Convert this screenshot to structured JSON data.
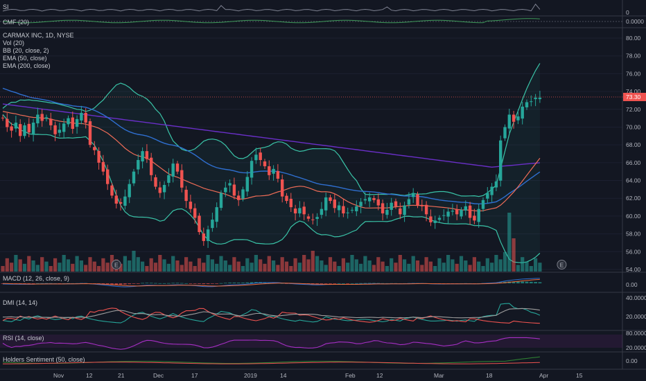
{
  "chart_data": {
    "type": "candlestick",
    "symbol": "CARMAX INC, 1D, NYSE",
    "price_last": "73.30",
    "colors": {
      "background": "#131722",
      "up": "#26a69a",
      "down": "#ef5350",
      "bb": "#3ac4a8",
      "ema50": "#2f6fd0",
      "ema200": "#6a2fc8",
      "cmf": "#3f9a5a",
      "macd": "#2f6fd0",
      "signal": "#ef6c3a",
      "dmi_plus": "#26a69a",
      "dmi_minus": "#ef5350",
      "adx": "#9e9e9e",
      "rsi": "#9c27b0",
      "holders": "#2e7d32"
    },
    "x_ticks": [
      "Nov",
      "12",
      "21",
      "Dec",
      "17",
      "2019",
      "14",
      "Feb",
      "12",
      "Mar",
      "18",
      "Apr",
      "15"
    ],
    "price_axis": {
      "min": 54,
      "max": 80,
      "ticks": [
        "80.00",
        "78.00",
        "76.00",
        "74.00",
        "72.00",
        "70.00",
        "68.00",
        "66.00",
        "64.00",
        "62.00",
        "60.00",
        "58.00",
        "56.00",
        "54.00"
      ]
    },
    "legend": [
      "Vol (20)",
      "BB (20, close, 2)",
      "EMA (50, close)",
      "EMA (200, close)"
    ],
    "panels": {
      "si": {
        "label": "SI",
        "ticks": [
          "0"
        ]
      },
      "cmf": {
        "label": "CMF (20)",
        "ticks": [
          "0.0000"
        ]
      },
      "macd": {
        "label": "MACD (12, 26, close, 9)",
        "ticks": [
          "0.00"
        ]
      },
      "dmi": {
        "label": "DMI (14, 14)",
        "ticks": [
          "40.0000",
          "20.0000"
        ]
      },
      "rsi": {
        "label": "RSI (14, close)",
        "ticks": [
          "80.0000",
          "20.0000"
        ]
      },
      "holders": {
        "label": "Holders Sentiment (50, close)",
        "ticks": [
          "0.00"
        ]
      }
    },
    "events": [
      {
        "label": "E",
        "x": 26
      },
      {
        "label": "E",
        "x": 128
      }
    ],
    "closes": [
      71,
      70,
      69.6,
      70.5,
      69,
      70.2,
      69.4,
      70.5,
      71.4,
      70.7,
      71.1,
      70.2,
      69.2,
      69.7,
      70.4,
      71,
      69.8,
      70.9,
      71.6,
      70.5,
      68,
      67.4,
      66,
      65,
      63.6,
      62.3,
      61.4,
      61.4,
      62.2,
      63.6,
      65,
      66.3,
      67.3,
      66.4,
      64.6,
      63.3,
      62.6,
      63.5,
      64.6,
      65.9,
      65,
      63.2,
      61.7,
      60.8,
      59.8,
      58.2,
      57.2,
      58.5,
      59.6,
      61,
      62.6,
      63.2,
      63.7,
      62.3,
      61.8,
      63,
      64.4,
      66.2,
      66.9,
      66.3,
      65.6,
      64.6,
      65.3,
      64.2,
      62.2,
      61.7,
      61,
      60.3,
      60.9,
      60.2,
      59.7,
      59.6,
      59.9,
      60.8,
      62.1,
      61.7,
      60.9,
      61.2,
      60.3,
      60.4,
      60.7,
      61.1,
      61.6,
      61.9,
      62.1,
      61.8,
      61.2,
      60.3,
      60.7,
      61.5,
      61.1,
      60.2,
      61.2,
      61.9,
      62.6,
      61.2,
      61.1,
      60.2,
      59.3,
      59.5,
      59.8,
      60.1,
      60.5,
      60.6,
      60.2,
      60.7,
      61.1,
      59.8,
      59.5,
      60.8,
      61.8,
      62.6,
      63.3,
      63.9,
      68.5,
      70,
      71.4,
      70.6,
      71.2,
      72.3,
      72.8,
      72.9,
      73.3,
      73.3
    ]
  }
}
